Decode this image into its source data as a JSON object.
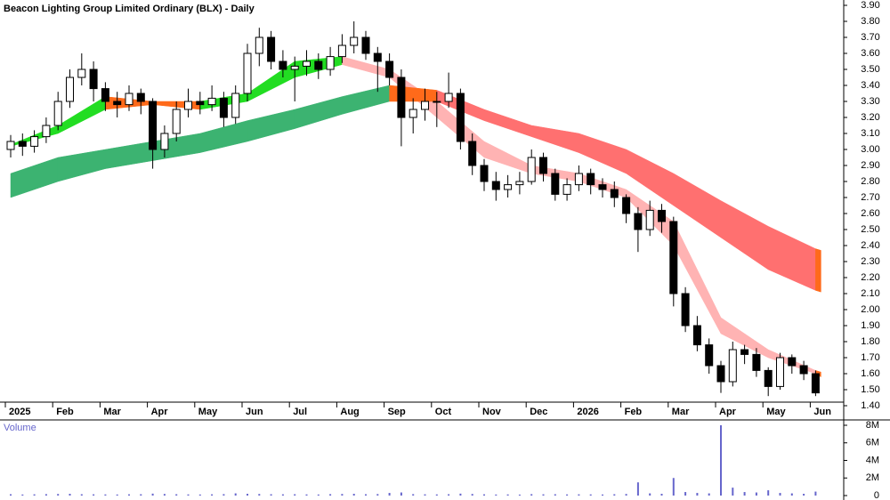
{
  "chart_data": {
    "type": "candlestick",
    "title": "Beacon Lighting Group Limited Ordinary (BLX) - Daily",
    "up_color": "#ffffff",
    "down_color": "#000000",
    "ylim": [
      1.4,
      3.9
    ],
    "yticks": [
      {
        "value": 3.9,
        "label": "3.90"
      },
      {
        "value": 3.8,
        "label": "3.80"
      },
      {
        "value": 3.7,
        "label": "3.70"
      },
      {
        "value": 3.6,
        "label": "3.60"
      },
      {
        "value": 3.5,
        "label": "3.50"
      },
      {
        "value": 3.4,
        "label": "3.40"
      },
      {
        "value": 3.3,
        "label": "3.30"
      },
      {
        "value": 3.2,
        "label": "3.20"
      },
      {
        "value": 3.1,
        "label": "3.10"
      },
      {
        "value": 3.0,
        "label": "3.00"
      },
      {
        "value": 2.9,
        "label": "2.90"
      },
      {
        "value": 2.8,
        "label": "2.80"
      },
      {
        "value": 2.7,
        "label": "2.70"
      },
      {
        "value": 2.6,
        "label": "2.60"
      },
      {
        "value": 2.5,
        "label": "2.50"
      },
      {
        "value": 2.4,
        "label": "2.40"
      },
      {
        "value": 2.3,
        "label": "2.30"
      },
      {
        "value": 2.2,
        "label": "2.20"
      },
      {
        "value": 2.1,
        "label": "2.10"
      },
      {
        "value": 2.0,
        "label": "2.00"
      },
      {
        "value": 1.9,
        "label": "1.90"
      },
      {
        "value": 1.8,
        "label": "1.80"
      },
      {
        "value": 1.7,
        "label": "1.70"
      },
      {
        "value": 1.6,
        "label": "1.60"
      },
      {
        "value": 1.5,
        "label": "1.50"
      },
      {
        "value": 1.4,
        "label": "1.40"
      }
    ],
    "months": [
      {
        "label": "2025",
        "candles": [
          [
            3.0,
            3.09,
            2.95,
            3.05
          ],
          [
            3.05,
            3.1,
            2.96,
            3.02
          ],
          [
            3.02,
            3.12,
            2.98,
            3.08
          ],
          [
            3.08,
            3.2,
            3.04,
            3.15
          ]
        ],
        "volume": [
          150000,
          120000,
          140000,
          160000
        ]
      },
      {
        "label": "Feb",
        "candles": [
          [
            3.15,
            3.36,
            3.12,
            3.3
          ],
          [
            3.3,
            3.5,
            3.26,
            3.45
          ],
          [
            3.45,
            3.6,
            3.4,
            3.5
          ],
          [
            3.5,
            3.55,
            3.3,
            3.38
          ]
        ],
        "volume": [
          180000,
          200000,
          150000,
          140000
        ]
      },
      {
        "label": "Mar",
        "candles": [
          [
            3.38,
            3.42,
            3.24,
            3.3
          ],
          [
            3.3,
            3.36,
            3.2,
            3.28
          ],
          [
            3.28,
            3.4,
            3.24,
            3.35
          ],
          [
            3.35,
            3.38,
            3.22,
            3.3
          ]
        ],
        "volume": [
          130000,
          120000,
          140000,
          150000
        ]
      },
      {
        "label": "Apr",
        "candles": [
          [
            3.3,
            3.32,
            2.88,
            3.0
          ],
          [
            3.0,
            3.15,
            2.95,
            3.1
          ],
          [
            3.1,
            3.3,
            3.05,
            3.25
          ],
          [
            3.25,
            3.38,
            3.2,
            3.3
          ]
        ],
        "volume": [
          220000,
          180000,
          150000,
          130000
        ]
      },
      {
        "label": "May",
        "candles": [
          [
            3.3,
            3.36,
            3.22,
            3.28
          ],
          [
            3.28,
            3.4,
            3.24,
            3.32
          ],
          [
            3.32,
            3.36,
            3.14,
            3.2
          ],
          [
            3.2,
            3.4,
            3.16,
            3.35
          ]
        ],
        "volume": [
          120000,
          140000,
          160000,
          250000
        ]
      },
      {
        "label": "Jun",
        "candles": [
          [
            3.35,
            3.66,
            3.3,
            3.6
          ],
          [
            3.6,
            3.76,
            3.52,
            3.7
          ],
          [
            3.7,
            3.74,
            3.5,
            3.55
          ],
          [
            3.55,
            3.62,
            3.45,
            3.5
          ]
        ],
        "volume": [
          200000,
          180000,
          150000,
          140000
        ]
      },
      {
        "label": "Jul",
        "candles": [
          [
            3.5,
            3.58,
            3.3,
            3.52
          ],
          [
            3.52,
            3.62,
            3.46,
            3.55
          ],
          [
            3.55,
            3.6,
            3.44,
            3.5
          ],
          [
            3.5,
            3.64,
            3.46,
            3.58
          ]
        ],
        "volume": [
          150000,
          130000,
          120000,
          160000
        ]
      },
      {
        "label": "Aug",
        "candles": [
          [
            3.58,
            3.72,
            3.54,
            3.65
          ],
          [
            3.65,
            3.8,
            3.6,
            3.7
          ],
          [
            3.7,
            3.74,
            3.56,
            3.6
          ],
          [
            3.6,
            3.64,
            3.36,
            3.55
          ]
        ],
        "volume": [
          180000,
          200000,
          150000,
          170000
        ]
      },
      {
        "label": "Sep",
        "candles": [
          [
            3.55,
            3.6,
            3.4,
            3.45
          ],
          [
            3.45,
            3.5,
            3.02,
            3.2
          ],
          [
            3.2,
            3.32,
            3.1,
            3.25
          ],
          [
            3.25,
            3.38,
            3.18,
            3.3
          ]
        ],
        "volume": [
          300000,
          350000,
          160000,
          140000
        ]
      },
      {
        "label": "Oct",
        "candles": [
          [
            3.3,
            3.36,
            3.14,
            3.3
          ],
          [
            3.3,
            3.48,
            3.26,
            3.35
          ],
          [
            3.35,
            3.38,
            3.0,
            3.05
          ],
          [
            3.05,
            3.1,
            2.84,
            2.9
          ]
        ],
        "volume": [
          130000,
          150000,
          220000,
          180000
        ]
      },
      {
        "label": "Nov",
        "candles": [
          [
            2.9,
            2.94,
            2.74,
            2.8
          ],
          [
            2.8,
            2.86,
            2.68,
            2.75
          ],
          [
            2.75,
            2.84,
            2.7,
            2.78
          ],
          [
            2.78,
            2.86,
            2.72,
            2.8
          ]
        ],
        "volume": [
          140000,
          120000,
          130000,
          110000
        ]
      },
      {
        "label": "Dec",
        "candles": [
          [
            2.8,
            3.0,
            2.78,
            2.95
          ],
          [
            2.95,
            2.98,
            2.8,
            2.85
          ],
          [
            2.85,
            2.88,
            2.68,
            2.72
          ],
          [
            2.72,
            2.82,
            2.68,
            2.78
          ]
        ],
        "volume": [
          160000,
          140000,
          150000,
          130000
        ]
      },
      {
        "label": "2026",
        "candles": [
          [
            2.78,
            2.9,
            2.74,
            2.85
          ],
          [
            2.85,
            2.88,
            2.72,
            2.78
          ],
          [
            2.78,
            2.82,
            2.7,
            2.75
          ],
          [
            2.75,
            2.8,
            2.64,
            2.7
          ]
        ],
        "volume": [
          140000,
          130000,
          120000,
          150000
        ]
      },
      {
        "label": "Feb",
        "candles": [
          [
            2.7,
            2.72,
            2.54,
            2.6
          ],
          [
            2.6,
            2.64,
            2.36,
            2.5
          ],
          [
            2.5,
            2.68,
            2.46,
            2.62
          ],
          [
            2.62,
            2.66,
            2.48,
            2.55
          ]
        ],
        "volume": [
          180000,
          1500000,
          250000,
          200000
        ]
      },
      {
        "label": "Mar",
        "candles": [
          [
            2.55,
            2.58,
            2.02,
            2.1
          ],
          [
            2.1,
            2.14,
            1.86,
            1.9
          ],
          [
            1.9,
            1.96,
            1.74,
            1.78
          ],
          [
            1.78,
            1.82,
            1.6,
            1.65
          ]
        ],
        "volume": [
          2000000,
          400000,
          300000,
          250000
        ]
      },
      {
        "label": "Apr",
        "candles": [
          [
            1.65,
            1.68,
            1.48,
            1.55
          ],
          [
            1.55,
            1.8,
            1.52,
            1.75
          ],
          [
            1.75,
            1.78,
            1.66,
            1.72
          ],
          [
            1.72,
            1.76,
            1.58,
            1.62
          ]
        ],
        "volume": [
          8000000,
          900000,
          400000,
          350000
        ]
      },
      {
        "label": "May",
        "candles": [
          [
            1.62,
            1.64,
            1.46,
            1.52
          ],
          [
            1.52,
            1.73,
            1.5,
            1.7
          ],
          [
            1.7,
            1.72,
            1.6,
            1.65
          ],
          [
            1.65,
            1.68,
            1.56,
            1.6
          ]
        ],
        "volume": [
          600000,
          300000,
          250000,
          200000
        ]
      },
      {
        "label": "Jun",
        "candles": [
          [
            1.6,
            1.62,
            1.46,
            1.48
          ]
        ],
        "volume": [
          450000
        ]
      }
    ],
    "bands": [
      {
        "rise_color": "#22dd22",
        "flat_color": "#ff6a1a",
        "fall_color": "#ffb3b3",
        "points": [
          [
            3.03,
            3.02
          ],
          [
            3.15,
            3.1
          ],
          [
            3.33,
            3.25
          ],
          [
            3.3,
            3.28
          ],
          [
            3.3,
            3.25
          ],
          [
            3.35,
            3.3
          ],
          [
            3.55,
            3.45
          ],
          [
            3.58,
            3.53
          ],
          [
            3.5,
            3.45
          ],
          [
            3.3,
            3.2
          ],
          [
            3.05,
            2.95
          ],
          [
            2.9,
            2.85
          ],
          [
            2.85,
            2.8
          ],
          [
            2.75,
            2.7
          ],
          [
            2.55,
            2.4
          ],
          [
            1.95,
            1.85
          ],
          [
            1.75,
            1.7
          ],
          [
            1.62,
            1.6
          ],
          [
            1.61,
            1.58
          ]
        ]
      },
      {
        "rise_color": "#3cb371",
        "flat_color": "#ff6a1a",
        "fall_color": "#ff7070",
        "points": [
          [
            2.85,
            2.7
          ],
          [
            2.95,
            2.8
          ],
          [
            3.0,
            2.88
          ],
          [
            3.05,
            2.93
          ],
          [
            3.1,
            2.98
          ],
          [
            3.18,
            3.05
          ],
          [
            3.25,
            3.13
          ],
          [
            3.33,
            3.22
          ],
          [
            3.4,
            3.3
          ],
          [
            3.37,
            3.3
          ],
          [
            3.25,
            3.18
          ],
          [
            3.15,
            3.08
          ],
          [
            3.1,
            2.98
          ],
          [
            3.0,
            2.85
          ],
          [
            2.85,
            2.65
          ],
          [
            2.68,
            2.45
          ],
          [
            2.52,
            2.25
          ],
          [
            2.38,
            2.12
          ],
          [
            2.37,
            2.11
          ]
        ]
      }
    ],
    "volume": {
      "title": "Volume",
      "color": "#6666cc",
      "ylim": [
        0,
        8000000
      ],
      "yticks": [
        0,
        {
          "value": 2000000,
          "label": "2M"
        },
        {
          "value": 4000000,
          "label": "4M"
        },
        {
          "value": 6000000,
          "label": "6M"
        },
        {
          "value": 8000000,
          "label": "8M"
        }
      ]
    }
  }
}
